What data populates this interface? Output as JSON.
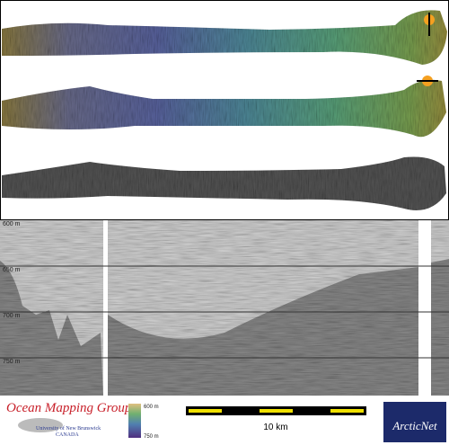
{
  "profile": {
    "depth_labels": [
      "600 m",
      "650 m",
      "700 m",
      "750 m"
    ]
  },
  "logo": {
    "title": "Ocean Mapping Group",
    "university": "University of New Brunswick",
    "country": "CANADA"
  },
  "colorbar": {
    "top": "600 m",
    "bottom": "750 m"
  },
  "scale_bar": {
    "label": "10 km"
  },
  "partner": {
    "name": "ArcticNet"
  }
}
